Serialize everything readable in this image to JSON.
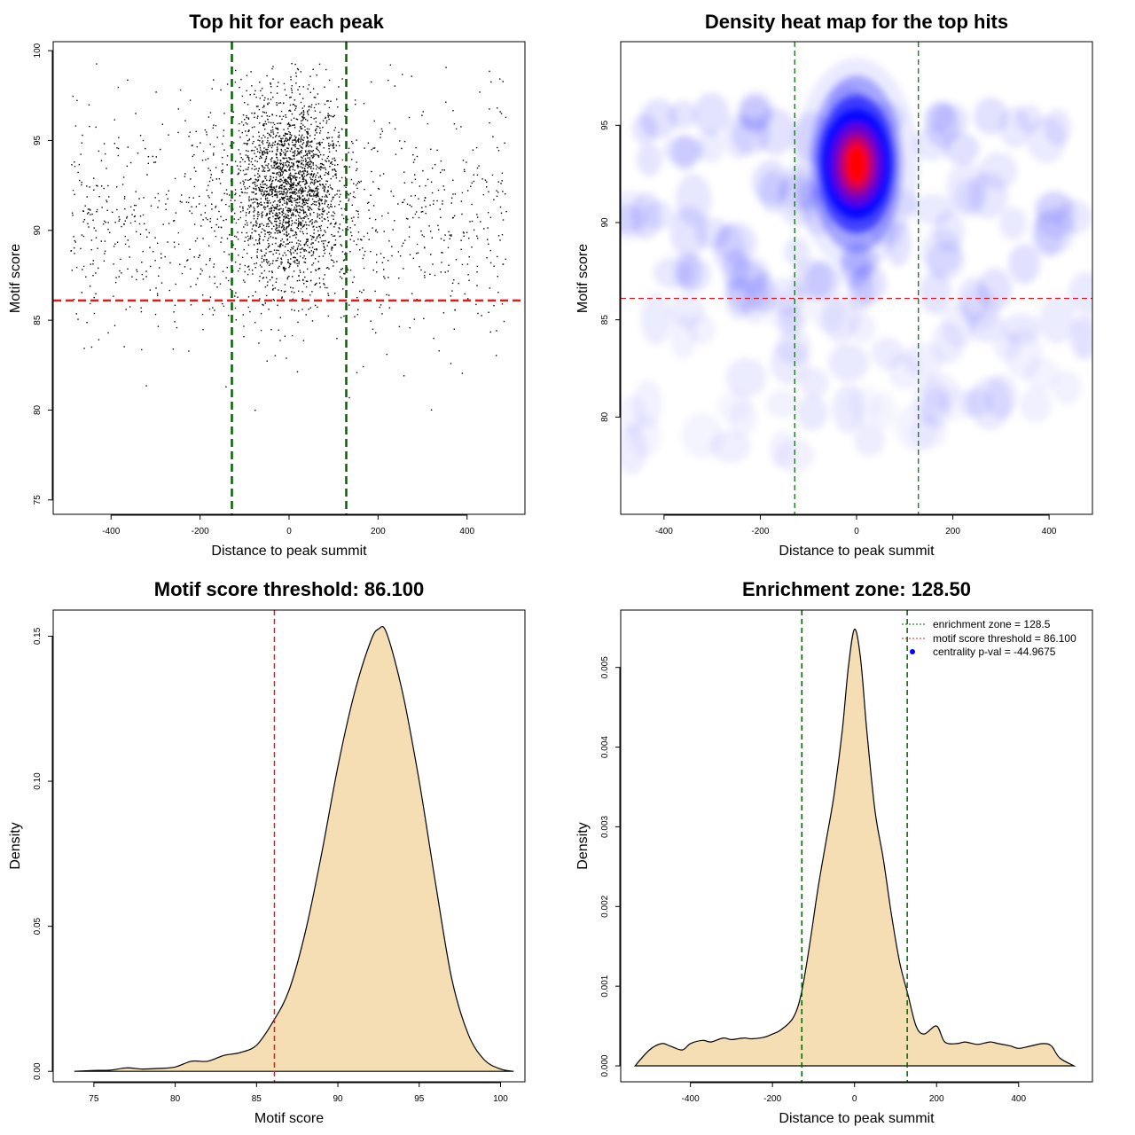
{
  "colors": {
    "threshold_red": "#e41a1c",
    "zone_green": "#006400",
    "density_fill": "#f5deb3",
    "heat_low": "#ffffff",
    "heat_mid": "#0000ff",
    "heat_high": "#ff0000",
    "centrality_point": "#0000ff"
  },
  "chart_data": [
    {
      "id": "scatter",
      "type": "scatter",
      "title": "Top hit for each peak",
      "xlabel": "Distance to peak summit",
      "ylabel": "Motif score",
      "xlim": [
        -530,
        530
      ],
      "ylim": [
        74.2,
        100.5
      ],
      "xticks": [
        -400,
        -200,
        0,
        200,
        400
      ],
      "yticks": [
        75,
        80,
        85,
        90,
        95,
        100
      ],
      "hline": 86.1,
      "vlines": [
        -128.5,
        128.5
      ],
      "n_points": 3200,
      "central_mean": 92.5,
      "central_sd": 2.6,
      "central_x_sd": 60,
      "background_mean": 90.5,
      "background_sd": 3.5
    },
    {
      "id": "heatmap",
      "type": "heatmap",
      "title": "Density heat map for the top hits",
      "xlabel": "Distance to peak summit",
      "ylabel": "Motif score",
      "xlim": [
        -490,
        490
      ],
      "ylim": [
        75,
        99.3
      ],
      "xticks": [
        -400,
        -200,
        0,
        200,
        400
      ],
      "yticks": [
        80,
        85,
        90,
        95
      ],
      "hline": 86.1,
      "vlines": [
        -128.5,
        128.5
      ],
      "peak_x": 0,
      "peak_y": 93,
      "color_scale": [
        "white",
        "blue",
        "red"
      ]
    },
    {
      "id": "score_density",
      "type": "area",
      "title": "Motif score threshold: 86.100",
      "xlabel": "Motif score",
      "ylabel": "Density",
      "xlim": [
        72.5,
        101.5
      ],
      "ylim": [
        -0.0036,
        0.159
      ],
      "xticks": [
        75,
        80,
        85,
        90,
        95,
        100
      ],
      "yticks": [
        0.0,
        0.05,
        0.1,
        0.15
      ],
      "ytick_labels": [
        "0.00",
        "0.05",
        "0.10",
        "0.15"
      ],
      "vline": 86.1,
      "x": [
        73.8,
        75,
        76,
        77,
        78,
        79,
        80,
        81,
        82,
        83,
        84,
        85,
        86,
        87,
        88,
        89,
        90,
        91,
        92,
        92.5,
        93,
        94,
        95,
        96,
        97,
        98,
        99,
        100,
        100.8
      ],
      "y": [
        0.0,
        0.0003,
        0.0004,
        0.0012,
        0.0008,
        0.001,
        0.0015,
        0.0035,
        0.0035,
        0.0055,
        0.0065,
        0.009,
        0.017,
        0.028,
        0.048,
        0.075,
        0.105,
        0.13,
        0.148,
        0.1525,
        0.151,
        0.13,
        0.1,
        0.065,
        0.032,
        0.013,
        0.004,
        0.0008,
        0.0
      ]
    },
    {
      "id": "distance_density",
      "type": "area",
      "title": "Enrichment zone: 128.50",
      "xlabel": "Distance to peak summit",
      "ylabel": "Density",
      "xlim": [
        -570,
        580
      ],
      "ylim": [
        -0.0002,
        0.00572
      ],
      "xticks": [
        -400,
        -200,
        0,
        200,
        400
      ],
      "yticks": [
        0.0,
        0.001,
        0.002,
        0.003,
        0.004,
        0.005
      ],
      "ytick_labels": [
        "0.000",
        "0.001",
        "0.002",
        "0.003",
        "0.004",
        "0.005"
      ],
      "vlines": [
        -128.5,
        128.5
      ],
      "x": [
        -535,
        -500,
        -470,
        -450,
        -420,
        -400,
        -370,
        -350,
        -320,
        -300,
        -270,
        -250,
        -220,
        -200,
        -180,
        -150,
        -130,
        -110,
        -90,
        -70,
        -50,
        -30,
        -15,
        0,
        15,
        30,
        50,
        70,
        90,
        110,
        130,
        150,
        170,
        200,
        220,
        250,
        270,
        300,
        330,
        350,
        380,
        400,
        430,
        460,
        480,
        500,
        535
      ],
      "y": [
        0.0,
        0.0002,
        0.00028,
        0.00025,
        0.0002,
        0.00028,
        0.00032,
        0.0003,
        0.00035,
        0.00033,
        0.00035,
        0.00034,
        0.00036,
        0.0004,
        0.00045,
        0.0006,
        0.0009,
        0.0015,
        0.0022,
        0.0028,
        0.0034,
        0.0042,
        0.005,
        0.00548,
        0.0051,
        0.0042,
        0.0032,
        0.0026,
        0.0019,
        0.0013,
        0.0009,
        0.0005,
        0.0004,
        0.0005,
        0.0003,
        0.00028,
        0.0003,
        0.00027,
        0.0003,
        0.00028,
        0.00025,
        0.00022,
        0.00025,
        0.00028,
        0.00025,
        0.0001,
        0.0
      ],
      "legend": [
        {
          "label": "enrichment zone = 128.5",
          "color": "#006400",
          "style": "dotted-line"
        },
        {
          "label": "motif score threshold = 86.100",
          "color": "#e41a1c",
          "style": "dotted-line"
        },
        {
          "label": "centrality p-val = -44.9675",
          "color": "#0000ff",
          "style": "point"
        }
      ],
      "legend_position": "top-right"
    }
  ]
}
